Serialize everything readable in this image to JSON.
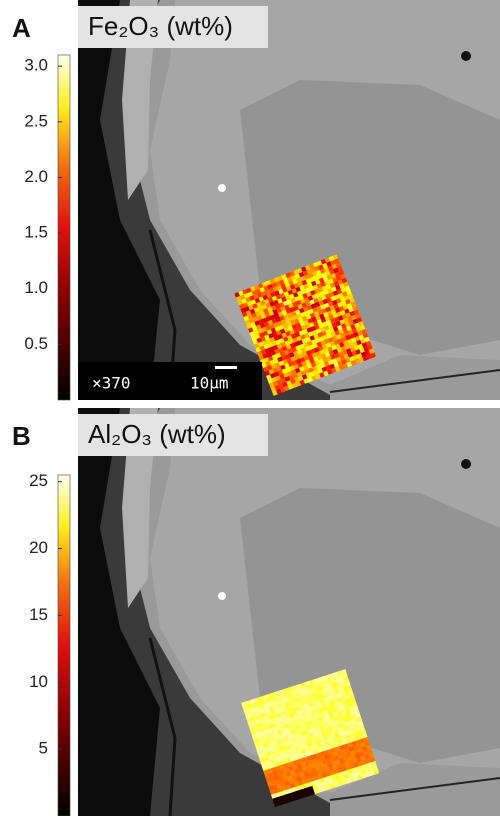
{
  "panels": [
    {
      "label": "A",
      "title": "Fe₂O₃ (wt%)",
      "colorbar": {
        "lim": [
          0,
          3.1
        ],
        "ticks": [
          0.5,
          {
            "value": 1,
            "label": "1.0"
          },
          1.5,
          {
            "value": 2,
            "label": "2.0"
          },
          2.5,
          {
            "value": 3,
            "label": "3.0"
          }
        ]
      },
      "magnification": "×370",
      "scale_bar": "10µm"
    },
    {
      "label": "B",
      "title": "Al₂O₃ (wt%)",
      "colorbar": {
        "lim": [
          0,
          25.5
        ],
        "ticks": [
          5,
          10,
          15,
          20,
          25
        ]
      }
    }
  ]
}
